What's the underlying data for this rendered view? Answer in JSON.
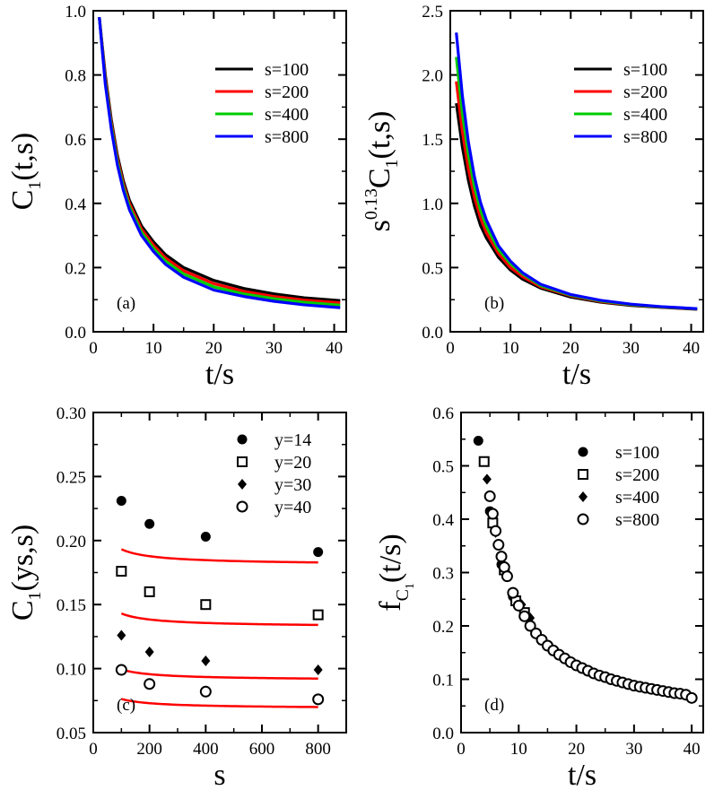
{
  "chart_data": [
    {
      "id": "a",
      "type": "line",
      "panel_label": "(a)",
      "xlabel": "t/s",
      "ylabel": {
        "base": "C",
        "sub": "1",
        "tail": "(t,s)"
      },
      "xlim": [
        0,
        42
      ],
      "ylim": [
        0.0,
        1.0
      ],
      "xticks": [
        0,
        10,
        20,
        30,
        40
      ],
      "xtick_labels": [
        "0",
        "10",
        "20",
        "30",
        "40"
      ],
      "yticks": [
        0.0,
        0.2,
        0.4,
        0.6,
        0.8,
        1.0
      ],
      "ytick_labels": [
        "0.0",
        "0.2",
        "0.4",
        "0.6",
        "0.8",
        "1.0"
      ],
      "legend_position": "top-right",
      "series": [
        {
          "name": "s=100",
          "color": "#000000",
          "x": [
            1,
            2,
            3,
            4,
            5,
            6,
            8,
            10,
            12,
            15,
            20,
            25,
            30,
            35,
            41
          ],
          "y": [
            0.98,
            0.8,
            0.66,
            0.55,
            0.47,
            0.41,
            0.33,
            0.28,
            0.24,
            0.2,
            0.16,
            0.135,
            0.118,
            0.106,
            0.097
          ]
        },
        {
          "name": "s=200",
          "color": "#ff0000",
          "x": [
            1,
            2,
            3,
            4,
            5,
            6,
            8,
            10,
            12,
            15,
            20,
            25,
            30,
            35,
            41
          ],
          "y": [
            0.98,
            0.79,
            0.65,
            0.54,
            0.46,
            0.4,
            0.32,
            0.27,
            0.23,
            0.19,
            0.15,
            0.126,
            0.11,
            0.099,
            0.09
          ]
        },
        {
          "name": "s=400",
          "color": "#00cc00",
          "x": [
            1,
            2,
            3,
            4,
            5,
            6,
            8,
            10,
            12,
            15,
            20,
            25,
            30,
            35,
            41
          ],
          "y": [
            0.98,
            0.78,
            0.64,
            0.53,
            0.45,
            0.39,
            0.31,
            0.26,
            0.22,
            0.18,
            0.14,
            0.118,
            0.103,
            0.092,
            0.083
          ]
        },
        {
          "name": "s=800",
          "color": "#0000ff",
          "x": [
            1,
            2,
            3,
            4,
            5,
            6,
            8,
            10,
            12,
            15,
            20,
            25,
            30,
            35,
            41
          ],
          "y": [
            0.98,
            0.77,
            0.63,
            0.52,
            0.44,
            0.38,
            0.3,
            0.25,
            0.21,
            0.17,
            0.13,
            0.11,
            0.095,
            0.084,
            0.075
          ]
        }
      ]
    },
    {
      "id": "b",
      "type": "line",
      "panel_label": "(b)",
      "xlabel": "t/s",
      "ylabel": {
        "base": "s",
        "sup": "0.13",
        "mid": "C",
        "sub": "1",
        "tail": "(t,s)"
      },
      "xlim": [
        0,
        42
      ],
      "ylim": [
        0.0,
        2.5
      ],
      "xticks": [
        0,
        10,
        20,
        30,
        40
      ],
      "xtick_labels": [
        "0",
        "10",
        "20",
        "30",
        "40"
      ],
      "yticks": [
        0.0,
        0.5,
        1.0,
        1.5,
        2.0,
        2.5
      ],
      "ytick_labels": [
        "0.0",
        "0.5",
        "1.0",
        "1.5",
        "2.0",
        "2.5"
      ],
      "legend_position": "top-right",
      "series": [
        {
          "name": "s=100",
          "color": "#000000",
          "x": [
            1,
            2,
            3,
            4,
            5,
            6,
            8,
            10,
            12,
            15,
            20,
            25,
            30,
            35,
            41
          ],
          "y": [
            1.78,
            1.44,
            1.18,
            0.98,
            0.83,
            0.73,
            0.58,
            0.48,
            0.41,
            0.34,
            0.27,
            0.23,
            0.205,
            0.19,
            0.175
          ]
        },
        {
          "name": "s=200",
          "color": "#ff0000",
          "x": [
            1,
            2,
            3,
            4,
            5,
            6,
            8,
            10,
            12,
            15,
            20,
            25,
            30,
            35,
            41
          ],
          "y": [
            1.95,
            1.56,
            1.27,
            1.05,
            0.89,
            0.77,
            0.61,
            0.5,
            0.43,
            0.35,
            0.28,
            0.235,
            0.21,
            0.192,
            0.177
          ]
        },
        {
          "name": "s=400",
          "color": "#00cc00",
          "x": [
            1,
            2,
            3,
            4,
            5,
            6,
            8,
            10,
            12,
            15,
            20,
            25,
            30,
            35,
            41
          ],
          "y": [
            2.14,
            1.7,
            1.38,
            1.13,
            0.95,
            0.82,
            0.64,
            0.53,
            0.45,
            0.36,
            0.285,
            0.24,
            0.212,
            0.194,
            0.178
          ]
        },
        {
          "name": "s=800",
          "color": "#0000ff",
          "x": [
            1,
            2,
            3,
            4,
            5,
            6,
            8,
            10,
            12,
            15,
            20,
            25,
            30,
            35,
            41
          ],
          "y": [
            2.33,
            1.84,
            1.48,
            1.21,
            1.01,
            0.87,
            0.67,
            0.55,
            0.46,
            0.37,
            0.29,
            0.245,
            0.215,
            0.196,
            0.18
          ]
        }
      ]
    },
    {
      "id": "c",
      "type": "scatter",
      "panel_label": "(c)",
      "xlabel": "s",
      "ylabel": {
        "base": "C",
        "sub": "1",
        "tail": "(ys,s)"
      },
      "xlim": [
        0,
        900
      ],
      "ylim": [
        0.05,
        0.3
      ],
      "xticks": [
        0,
        200,
        400,
        600,
        800
      ],
      "xtick_labels": [
        "0",
        "200",
        "400",
        "600",
        "800"
      ],
      "yticks": [
        0.05,
        0.1,
        0.15,
        0.2,
        0.25,
        0.3
      ],
      "ytick_labels": [
        "0.05",
        "0.10",
        "0.15",
        "0.20",
        "0.25",
        "0.30"
      ],
      "legend_position": "top-right",
      "fit_color": "#ff0000",
      "series": [
        {
          "name": "y=14",
          "marker": "filled-circle",
          "x": [
            100,
            200,
            400,
            800
          ],
          "y": [
            0.231,
            0.213,
            0.203,
            0.191
          ],
          "fit": {
            "a": 0.1805,
            "b": 0.505
          }
        },
        {
          "name": "y=20",
          "marker": "open-square",
          "x": [
            100,
            200,
            400,
            800
          ],
          "y": [
            0.176,
            0.16,
            0.15,
            0.142
          ],
          "fit": {
            "a": 0.132,
            "b": 0.44
          }
        },
        {
          "name": "y=30",
          "marker": "filled-diamond",
          "x": [
            100,
            200,
            400,
            800
          ],
          "y": [
            0.126,
            0.113,
            0.106,
            0.099
          ],
          "fit": {
            "a": 0.0905,
            "b": 0.355
          }
        },
        {
          "name": "y=40",
          "marker": "open-circle",
          "x": [
            100,
            200,
            400,
            800
          ],
          "y": [
            0.099,
            0.088,
            0.082,
            0.076
          ],
          "fit": {
            "a": 0.0685,
            "b": 0.31
          }
        }
      ]
    },
    {
      "id": "d",
      "type": "scatter",
      "panel_label": "(d)",
      "xlabel": "t/s",
      "ylabel": {
        "base": "f",
        "sub": "C",
        "subsub": "1",
        "tail": "(t/s)"
      },
      "xlim": [
        0,
        42
      ],
      "ylim": [
        0.0,
        0.6
      ],
      "xticks": [
        0,
        10,
        20,
        30,
        40
      ],
      "xtick_labels": [
        "0",
        "10",
        "20",
        "30",
        "40"
      ],
      "yticks": [
        0.0,
        0.1,
        0.2,
        0.3,
        0.4,
        0.5,
        0.6
      ],
      "ytick_labels": [
        "0.0",
        "0.1",
        "0.2",
        "0.3",
        "0.4",
        "0.5",
        "0.6"
      ],
      "legend_position": "top-right",
      "series": [
        {
          "name": "s=100",
          "marker": "filled-circle",
          "x": [
            3,
            5,
            7,
            9
          ],
          "y": [
            0.547,
            0.415,
            0.315,
            0.255
          ]
        },
        {
          "name": "s=200",
          "marker": "open-square",
          "x": [
            4,
            5.5,
            7.5,
            9.5,
            11
          ],
          "y": [
            0.508,
            0.393,
            0.305,
            0.247,
            0.225
          ]
        },
        {
          "name": "s=400",
          "marker": "filled-diamond",
          "x": [
            4.5,
            6,
            8,
            10.5,
            12
          ],
          "y": [
            0.475,
            0.375,
            0.295,
            0.24,
            0.215
          ]
        },
        {
          "name": "s=800",
          "marker": "open-circle",
          "x": [
            5,
            5.5,
            6,
            6.5,
            7,
            7.5,
            8,
            9,
            10,
            11,
            12,
            13,
            14,
            15,
            16,
            17,
            18,
            19,
            20,
            21,
            22,
            23,
            24,
            25,
            26,
            27,
            28,
            29,
            30,
            31,
            32,
            33,
            34,
            35,
            36,
            37,
            38,
            39,
            40
          ],
          "y": [
            0.443,
            0.41,
            0.378,
            0.352,
            0.33,
            0.31,
            0.293,
            0.262,
            0.238,
            0.218,
            0.2,
            0.186,
            0.174,
            0.163,
            0.154,
            0.146,
            0.139,
            0.132,
            0.126,
            0.121,
            0.116,
            0.111,
            0.107,
            0.104,
            0.1,
            0.097,
            0.094,
            0.091,
            0.088,
            0.086,
            0.084,
            0.082,
            0.08,
            0.078,
            0.076,
            0.074,
            0.073,
            0.071,
            0.065
          ]
        }
      ]
    }
  ]
}
